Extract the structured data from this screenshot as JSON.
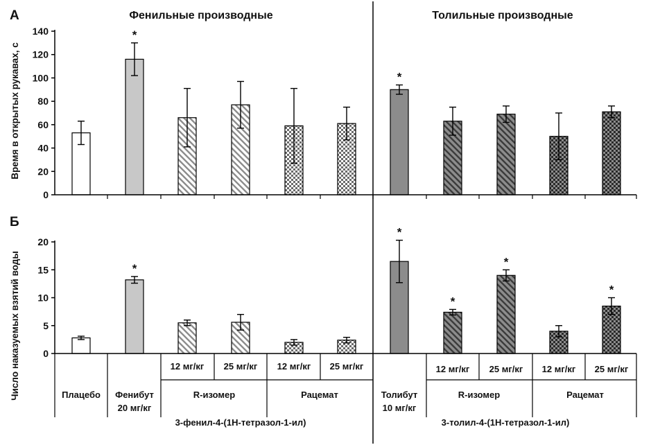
{
  "chart_data": {
    "type": "bar",
    "panels": [
      {
        "id": "A",
        "label": "А",
        "ylabel": "Время в открытых рукавах, с",
        "ylim": [
          0,
          140
        ],
        "yticks": [
          0,
          20,
          40,
          60,
          80,
          100,
          120,
          140
        ],
        "titles": [
          "Фенильные производные",
          "Толильные производные"
        ],
        "values": [
          53,
          116,
          66,
          77,
          59,
          61,
          90,
          63,
          69,
          50,
          71
        ],
        "errors": [
          10,
          14,
          25,
          20,
          32,
          14,
          4,
          12,
          7,
          20,
          5
        ],
        "significant": [
          false,
          true,
          false,
          false,
          false,
          false,
          true,
          false,
          false,
          false,
          false
        ]
      },
      {
        "id": "B",
        "label": "Б",
        "ylabel": "Число наказуемых взятий воды",
        "ylim": [
          0,
          20
        ],
        "yticks": [
          0,
          5,
          10,
          15,
          20
        ],
        "values": [
          2.8,
          13.2,
          5.5,
          5.6,
          2.0,
          2.4,
          16.5,
          7.4,
          14.0,
          4.0,
          8.5
        ],
        "errors": [
          0.3,
          0.6,
          0.5,
          1.4,
          0.5,
          0.5,
          3.8,
          0.5,
          1.0,
          1.0,
          1.5
        ],
        "significant": [
          false,
          true,
          false,
          false,
          false,
          false,
          true,
          true,
          true,
          false,
          true
        ]
      }
    ],
    "bar_styles": [
      "white",
      "lightgray",
      "hatch-light",
      "hatch-light",
      "checker-light",
      "checker-light",
      "darkgray",
      "hatch-dark",
      "hatch-dark",
      "checker-dark",
      "checker-dark"
    ],
    "significance_marker": "*",
    "x_axis": {
      "dose_labels": [
        "12 мг/кг",
        "25 мг/кг",
        "12 мг/кг",
        "25 мг/кг",
        "12 мг/кг",
        "25 мг/кг",
        "12 мг/кг",
        "25 мг/кг"
      ],
      "group_labels": {
        "placebo": "Плацебо",
        "phenibut": [
          "Фенибут",
          "20 мг/кг"
        ],
        "r_isomer_phenyl": "R-изомер",
        "racemate_phenyl": "Рацемат",
        "tolibut": [
          "Толибут",
          "10 мг/кг"
        ],
        "r_isomer_tolyl": "R-изомер",
        "racemate_tolyl": "Рацемат"
      },
      "family_labels": [
        "3-фенил-4-(1H-тетразол-1-ил)",
        "3-толил-4-(1H-тетразол-1-ил)"
      ]
    },
    "colors": {
      "white": "#ffffff",
      "lightgray": "#c8c8c8",
      "darkgray": "#8c8c8c",
      "hatch_light_bg": "#ffffff",
      "hatch_light_fg": "#8a8a8a",
      "hatch_dark_bg": "#8c8c8c",
      "hatch_dark_fg": "#3a3a3a",
      "checker_light_a": "#ffffff",
      "checker_light_b": "#6a6a6a",
      "checker_dark_a": "#8c8c8c",
      "checker_dark_b": "#2a2a2a",
      "stroke": "#000000"
    }
  }
}
